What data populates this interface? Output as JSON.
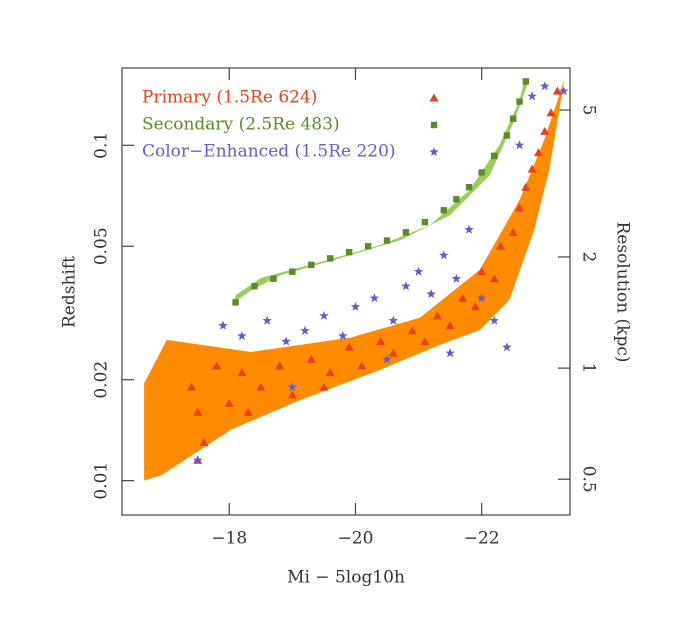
{
  "chart_data": {
    "type": "scatter",
    "xlabel": "Mi − 5log10h",
    "ylabel": "Redshift",
    "y2label": "Resolution (kpc)",
    "xlim": [
      -16.3,
      -23.4
    ],
    "xticks": [
      {
        "value": -18,
        "label": "−18"
      },
      {
        "value": -20,
        "label": "−20"
      },
      {
        "value": -22,
        "label": "−22"
      }
    ],
    "ylim": [
      0.0079,
      0.17
    ],
    "ylog": true,
    "yticks": [
      0.01,
      0.02,
      0.05,
      0.1
    ],
    "y2lim": [
      0.4,
      6.5
    ],
    "y2log": true,
    "y2ticks": [
      0.5,
      1,
      2,
      5
    ],
    "legend": "upper left",
    "bands": [
      {
        "color": "#ff8c00",
        "x": [
          -16.65,
          -17.01,
          -18.35,
          -19.92,
          -21.02,
          -21.97,
          -22.6,
          -22.99,
          -23.23,
          -23.31,
          -23.23,
          -23.07,
          -22.83,
          -22.44,
          -21.97,
          -21.34,
          -20.39,
          -19.13,
          -18.03,
          -16.93,
          -16.65
        ],
        "y": [
          0.0195,
          0.0263,
          0.0242,
          0.0267,
          0.0306,
          0.0425,
          0.0686,
          0.1035,
          0.141,
          0.158,
          0.127,
          0.0843,
          0.0558,
          0.0346,
          0.0281,
          0.0254,
          0.0214,
          0.0174,
          0.0142,
          0.0104,
          0.01
        ]
      },
      {
        "color": "#9acd5a",
        "x": [
          -18.11,
          -18.5,
          -19.45,
          -20.39,
          -21.18,
          -21.81,
          -22.28,
          -22.6,
          -22.68,
          -22.76,
          -22.52,
          -22.13,
          -21.5,
          -20.71,
          -19.76,
          -18.82,
          -18.35,
          -18.03
        ],
        "y": [
          0.0358,
          0.0402,
          0.0449,
          0.0504,
          0.0578,
          0.0735,
          0.1,
          0.136,
          0.158,
          0.158,
          0.1186,
          0.0815,
          0.0619,
          0.0521,
          0.0461,
          0.041,
          0.037,
          0.0334
        ]
      }
    ],
    "series": [
      {
        "name": "Primary (1.5Re 624)",
        "color": "#e8411b",
        "marker": "triangle",
        "x": [
          -17.4,
          -17.5,
          -17.6,
          -17.8,
          -18.0,
          -18.2,
          -18.5,
          -18.8,
          -19.0,
          -19.3,
          -19.6,
          -19.9,
          -20.1,
          -20.4,
          -20.6,
          -20.9,
          -21.1,
          -21.3,
          -21.5,
          -21.7,
          -21.9,
          -22.0,
          -22.2,
          -22.3,
          -22.5,
          -22.6,
          -22.7,
          -22.8,
          -22.9,
          -23.0,
          -23.1,
          -23.2,
          -17.5,
          -18.3,
          -19.5
        ],
        "values": [
          0.019,
          0.016,
          0.013,
          0.022,
          0.017,
          0.021,
          0.019,
          0.022,
          0.018,
          0.023,
          0.021,
          0.025,
          0.022,
          0.026,
          0.024,
          0.028,
          0.026,
          0.031,
          0.029,
          0.035,
          0.033,
          0.042,
          0.04,
          0.05,
          0.055,
          0.065,
          0.075,
          0.085,
          0.095,
          0.11,
          0.125,
          0.145,
          0.0115,
          0.016,
          0.019
        ]
      },
      {
        "name": "Secondary (2.5Re 483)",
        "color": "#5a8a2a",
        "marker": "square",
        "x": [
          -18.1,
          -18.4,
          -18.7,
          -19.0,
          -19.3,
          -19.6,
          -19.9,
          -20.2,
          -20.5,
          -20.8,
          -21.1,
          -21.4,
          -21.6,
          -21.8,
          -22.0,
          -22.2,
          -22.4,
          -22.5,
          -22.6,
          -22.7
        ],
        "values": [
          0.034,
          0.038,
          0.04,
          0.042,
          0.044,
          0.046,
          0.048,
          0.05,
          0.052,
          0.055,
          0.059,
          0.064,
          0.069,
          0.075,
          0.083,
          0.093,
          0.107,
          0.12,
          0.135,
          0.155
        ]
      },
      {
        "name": "Color−Enhanced (1.5Re 220)",
        "color": "#6a5acd",
        "marker": "star",
        "x": [
          -17.5,
          -17.9,
          -18.2,
          -18.6,
          -18.9,
          -19.2,
          -19.5,
          -19.8,
          -20.0,
          -20.3,
          -20.6,
          -20.8,
          -21.0,
          -21.2,
          -21.4,
          -21.6,
          -21.8,
          -22.0,
          -22.2,
          -22.4,
          -22.6,
          -22.8,
          -23.0,
          -23.3,
          -19.0,
          -20.5,
          -21.5
        ],
        "values": [
          0.0115,
          0.029,
          0.027,
          0.03,
          0.026,
          0.028,
          0.031,
          0.027,
          0.033,
          0.035,
          0.03,
          0.038,
          0.042,
          0.036,
          0.047,
          0.04,
          0.056,
          0.035,
          0.03,
          0.025,
          0.1,
          0.14,
          0.15,
          0.145,
          0.019,
          0.023,
          0.024
        ]
      }
    ]
  }
}
